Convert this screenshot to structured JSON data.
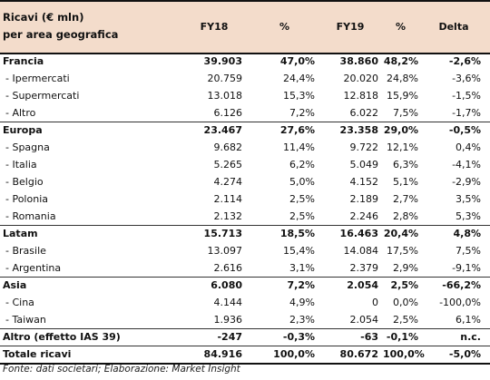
{
  "header": {
    "label_line1": "Ricavi (€ mln)",
    "label_line2": "per area geografica",
    "col_fy18": "FY18",
    "col_pct1": "%",
    "col_fy19": "FY19",
    "col_pct2": "%",
    "col_delta": "Delta"
  },
  "rows": [
    {
      "label": "Francia",
      "fy18": "39.903",
      "pct18": "47,0%",
      "fy19": "38.860",
      "pct19": "48,2%",
      "delta": "-2,6%",
      "kind": "grp"
    },
    {
      "label": "- Ipermercati",
      "fy18": "20.759",
      "pct18": "24,4%",
      "fy19": "20.020",
      "pct19": "24,8%",
      "delta": "-3,6%",
      "kind": "sub"
    },
    {
      "label": "- Supermercati",
      "fy18": "13.018",
      "pct18": "15,3%",
      "fy19": "12.818",
      "pct19": "15,9%",
      "delta": "-1,5%",
      "kind": "sub"
    },
    {
      "label": "- Altro",
      "fy18": "6.126",
      "pct18": "7,2%",
      "fy19": "6.022",
      "pct19": "7,5%",
      "delta": "-1,7%",
      "kind": "sub"
    },
    {
      "label": "Europa",
      "fy18": "23.467",
      "pct18": "27,6%",
      "fy19": "23.358",
      "pct19": "29,0%",
      "delta": "-0,5%",
      "kind": "grp"
    },
    {
      "label": "- Spagna",
      "fy18": "9.682",
      "pct18": "11,4%",
      "fy19": "9.722",
      "pct19": "12,1%",
      "delta": "0,4%",
      "kind": "sub"
    },
    {
      "label": "- Italia",
      "fy18": "5.265",
      "pct18": "6,2%",
      "fy19": "5.049",
      "pct19": "6,3%",
      "delta": "-4,1%",
      "kind": "sub"
    },
    {
      "label": "- Belgio",
      "fy18": "4.274",
      "pct18": "5,0%",
      "fy19": "4.152",
      "pct19": "5,1%",
      "delta": "-2,9%",
      "kind": "sub"
    },
    {
      "label": "- Polonia",
      "fy18": "2.114",
      "pct18": "2,5%",
      "fy19": "2.189",
      "pct19": "2,7%",
      "delta": "3,5%",
      "kind": "sub"
    },
    {
      "label": "- Romania",
      "fy18": "2.132",
      "pct18": "2,5%",
      "fy19": "2.246",
      "pct19": "2,8%",
      "delta": "5,3%",
      "kind": "sub"
    },
    {
      "label": "Latam",
      "fy18": "15.713",
      "pct18": "18,5%",
      "fy19": "16.463",
      "pct19": "20,4%",
      "delta": "4,8%",
      "kind": "grp"
    },
    {
      "label": "- Brasile",
      "fy18": "13.097",
      "pct18": "15,4%",
      "fy19": "14.084",
      "pct19": "17,5%",
      "delta": "7,5%",
      "kind": "sub"
    },
    {
      "label": "- Argentina",
      "fy18": "2.616",
      "pct18": "3,1%",
      "fy19": "2.379",
      "pct19": "2,9%",
      "delta": "-9,1%",
      "kind": "sub"
    },
    {
      "label": "Asia",
      "fy18": "6.080",
      "pct18": "7,2%",
      "fy19": "2.054",
      "pct19": "2,5%",
      "delta": "-66,2%",
      "kind": "grp"
    },
    {
      "label": "- Cina",
      "fy18": "4.144",
      "pct18": "4,9%",
      "fy19": "0",
      "pct19": "0,0%",
      "delta": "-100,0%",
      "kind": "sub"
    },
    {
      "label": "- Taiwan",
      "fy18": "1.936",
      "pct18": "2,3%",
      "fy19": "2.054",
      "pct19": "2,5%",
      "delta": "6,1%",
      "kind": "sub"
    },
    {
      "label": "Altro (effetto IAS 39)",
      "fy18": "-247",
      "pct18": "-0,3%",
      "fy19": "-63",
      "pct19": "-0,1%",
      "delta": "n.c.",
      "kind": "grp"
    },
    {
      "label": "Totale ricavi",
      "fy18": "84.916",
      "pct18": "100,0%",
      "fy19": "80.672",
      "pct19": "100,0%",
      "delta": "-5,0%",
      "kind": "tot"
    }
  ],
  "source_note": "Fonte: dati societari; Elaborazione: Market Insight",
  "colors": {
    "header_bg": "#f3dccb"
  }
}
